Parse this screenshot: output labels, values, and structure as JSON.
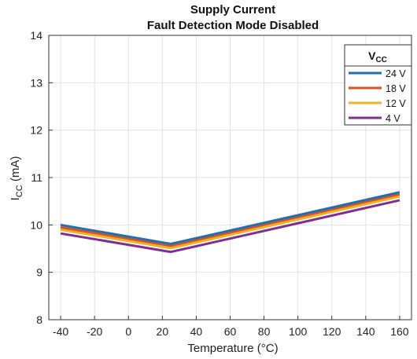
{
  "chart_data": {
    "type": "line",
    "title": [
      "Supply Current",
      "Fault Detection Mode Disabled"
    ],
    "xlabel": "Temperature (°C)",
    "ylabel": {
      "main": "I",
      "sub": "CC",
      "unit": " (mA)"
    },
    "xlim": [
      -47,
      167
    ],
    "ylim": [
      8,
      14
    ],
    "xticks": [
      -40,
      -20,
      0,
      20,
      40,
      60,
      80,
      100,
      120,
      140,
      160
    ],
    "yticks": [
      8,
      9,
      10,
      11,
      12,
      13,
      14
    ],
    "grid": true,
    "legend": {
      "title_main": "V",
      "title_sub": "CC",
      "placement": "top-right"
    },
    "series": [
      {
        "name": "24 V",
        "color": "#1f6fb4",
        "x": [
          -40,
          25,
          160
        ],
        "y": [
          10.0,
          9.6,
          10.69
        ]
      },
      {
        "name": "18 V",
        "color": "#d9531e",
        "x": [
          -40,
          25,
          160
        ],
        "y": [
          9.95,
          9.56,
          10.65
        ]
      },
      {
        "name": "12 V",
        "color": "#eeb221",
        "x": [
          -40,
          25,
          160
        ],
        "y": [
          9.9,
          9.51,
          10.6
        ]
      },
      {
        "name": "4 V",
        "color": "#7e2f8e",
        "x": [
          -40,
          25,
          160
        ],
        "y": [
          9.82,
          9.43,
          10.52
        ]
      }
    ]
  }
}
